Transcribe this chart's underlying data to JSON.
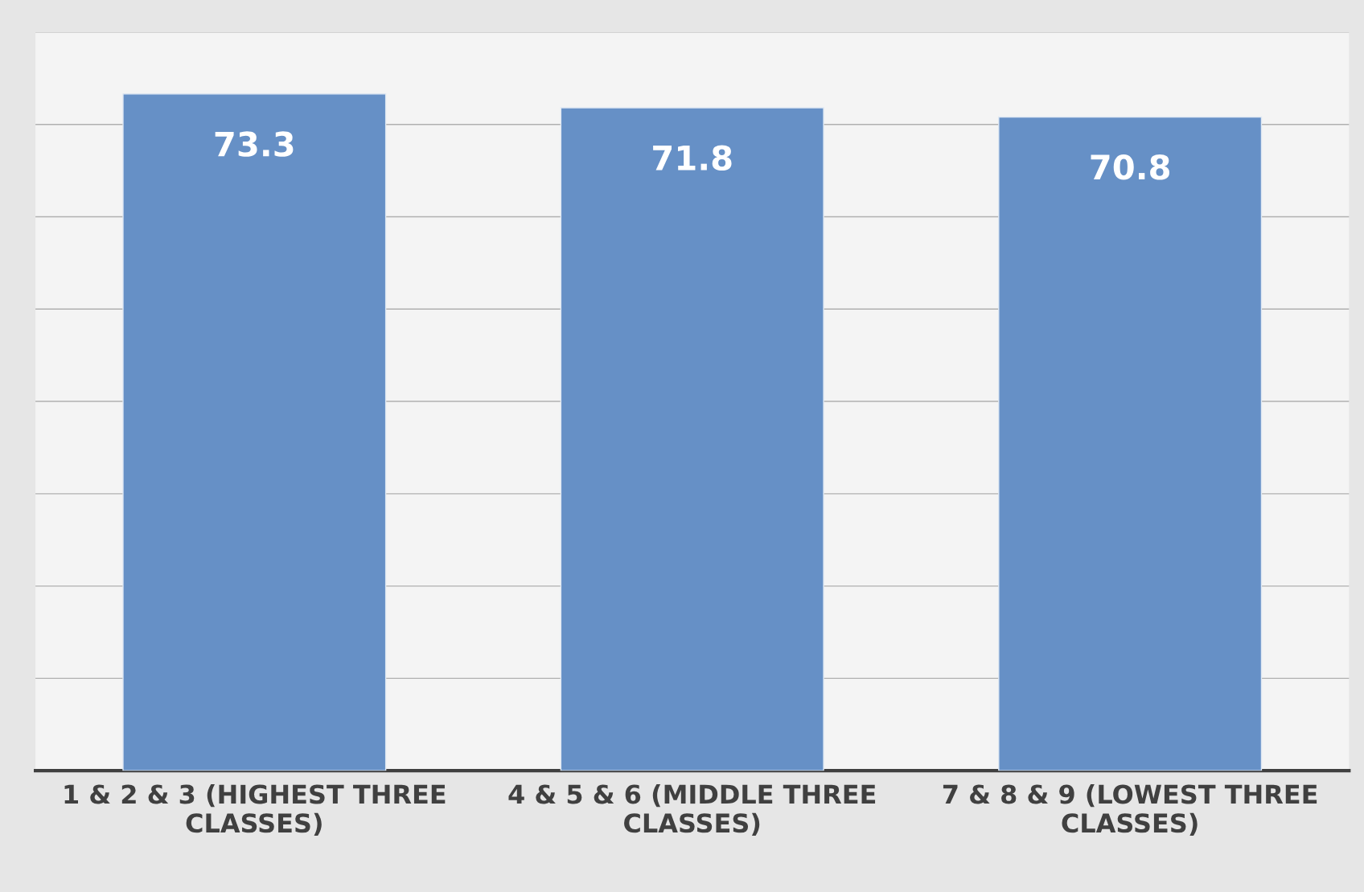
{
  "chart_data": {
    "type": "bar",
    "categories": [
      "1 & 2 & 3 (HIGHEST THREE\nCLASSES)",
      "4 & 5 & 6 (MIDDLE THREE\nCLASSES)",
      "7 & 8 & 9 (LOWEST THREE\nCLASSES)"
    ],
    "values": [
      73.3,
      71.8,
      70.8
    ],
    "color": "#6690c6",
    "data_labels": true,
    "ylim": [
      0,
      80
    ],
    "yticks": [
      {
        "value": 0,
        "label": null
      },
      {
        "value": 10,
        "label": null
      },
      {
        "value": 20,
        "label": null
      },
      {
        "value": 30,
        "label": null
      },
      {
        "value": 40,
        "label": null
      },
      {
        "value": 50,
        "label": null
      },
      {
        "value": 60,
        "label": null
      },
      {
        "value": 70,
        "label": null
      },
      {
        "value": 80,
        "label": null
      }
    ],
    "grid": "y",
    "tick_labels": "x"
  }
}
